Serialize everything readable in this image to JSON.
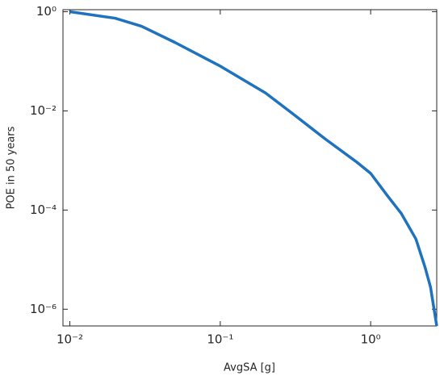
{
  "chart_data": {
    "type": "line",
    "x_label": "AvgSA [g]",
    "y_label": "POE in 50 years",
    "x": [
      0.01,
      0.02,
      0.03,
      0.05,
      0.1,
      0.2,
      0.3,
      0.5,
      0.8,
      1,
      1.3,
      1.6,
      2,
      2.3,
      2.5,
      2.75
    ],
    "series": [
      {
        "color": "#1f72bd",
        "values": [
          1,
          0.74,
          0.51,
          0.24,
          0.08,
          0.023,
          0.009,
          0.0027,
          0.00095,
          0.00055,
          0.00019,
          8.5e-05,
          2.6e-05,
          7e-06,
          2.8e-06,
          4.6e-07
        ]
      }
    ],
    "xscale": "log",
    "yscale": "log",
    "xlim": [
      0.009,
      2.75
    ],
    "ylim": [
      4.6e-07,
      1.1
    ],
    "xticks": [
      {
        "value": 0.01,
        "label": "10⁻²"
      },
      {
        "value": 0.1,
        "label": "10⁻¹"
      },
      {
        "value": 1,
        "label": "10⁰"
      }
    ],
    "yticks": [
      {
        "value": 1e-06,
        "label": "10⁻⁶"
      },
      {
        "value": 0.0001,
        "label": "10⁻⁴"
      },
      {
        "value": 0.01,
        "label": "10⁻²"
      },
      {
        "value": 1,
        "label": "10⁰"
      }
    ]
  }
}
